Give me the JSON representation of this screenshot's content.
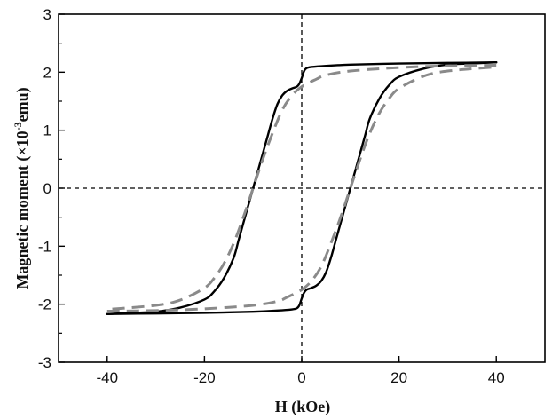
{
  "chart_data": {
    "type": "line",
    "title": "",
    "xlabel": "H (kOe)",
    "ylabel_main": "Magnetic moment (×10",
    "ylabel_sup": "-3",
    "ylabel_unit": "emu)",
    "xlim": [
      -50,
      50
    ],
    "ylim": [
      -3,
      3
    ],
    "x_ticks": [
      -40,
      -20,
      0,
      20,
      40
    ],
    "x_tick_labels": [
      "-40",
      "-20",
      "0",
      "20",
      "40"
    ],
    "y_ticks": [
      -3,
      -2,
      -1,
      0,
      1,
      2,
      3
    ],
    "y_tick_labels": [
      "-3",
      "-2",
      "-1",
      "0",
      "1",
      "2",
      "3"
    ],
    "grid": false,
    "reference_lines": {
      "x": 0,
      "y": 0,
      "style": "dashed"
    },
    "series": [
      {
        "style": "solid",
        "color": "#000000",
        "branches": [
          {
            "x": [
              40,
              30,
              20,
              10,
              5,
              2,
              1,
              0.5,
              0,
              -0.5,
              -1,
              -2,
              -3,
              -4,
              -5,
              -6,
              -7,
              -8,
              -9,
              -10,
              -11,
              -12,
              -13,
              -14,
              -16,
              -18,
              -20,
              -25,
              -30,
              -35,
              -40
            ],
            "y": [
              2.17,
              2.16,
              2.15,
              2.13,
              2.11,
              2.09,
              2.07,
              2.02,
              1.9,
              1.8,
              1.75,
              1.72,
              1.68,
              1.6,
              1.45,
              1.2,
              0.9,
              0.6,
              0.3,
              0.0,
              -0.3,
              -0.6,
              -0.9,
              -1.2,
              -1.55,
              -1.78,
              -1.92,
              -2.06,
              -2.13,
              -2.15,
              -2.17
            ]
          },
          {
            "x": [
              -40,
              -30,
              -20,
              -10,
              -5,
              -2,
              -1,
              -0.5,
              0,
              0.5,
              1,
              2,
              3,
              4,
              5,
              6,
              7,
              8,
              9,
              10,
              11,
              12,
              13,
              14,
              16,
              18,
              20,
              25,
              30,
              35,
              40
            ],
            "y": [
              -2.17,
              -2.16,
              -2.15,
              -2.13,
              -2.11,
              -2.09,
              -2.07,
              -2.02,
              -1.9,
              -1.8,
              -1.75,
              -1.72,
              -1.68,
              -1.6,
              -1.45,
              -1.2,
              -0.9,
              -0.6,
              -0.3,
              0.0,
              0.3,
              0.6,
              0.9,
              1.2,
              1.55,
              1.78,
              1.92,
              2.06,
              2.13,
              2.15,
              2.17
            ]
          }
        ]
      },
      {
        "style": "dashed",
        "color": "#8a8a8a",
        "branches": [
          {
            "x": [
              40,
              30,
              20,
              10,
              5,
              3,
              0,
              -2,
              -4,
              -6,
              -8,
              -10,
              -12,
              -14,
              -16,
              -18,
              -20,
              -25,
              -30,
              -40
            ],
            "y": [
              2.12,
              2.11,
              2.08,
              2.02,
              1.95,
              1.88,
              1.75,
              1.6,
              1.35,
              0.95,
              0.5,
              0.0,
              -0.5,
              -0.95,
              -1.3,
              -1.55,
              -1.72,
              -1.93,
              -2.02,
              -2.09
            ]
          },
          {
            "x": [
              -40,
              -30,
              -20,
              -10,
              -5,
              -3,
              0,
              2,
              4,
              6,
              8,
              10,
              12,
              14,
              16,
              18,
              20,
              25,
              30,
              40
            ],
            "y": [
              -2.12,
              -2.11,
              -2.08,
              -2.02,
              -1.95,
              -1.88,
              -1.75,
              -1.6,
              -1.35,
              -0.95,
              -0.5,
              0.0,
              0.5,
              0.95,
              1.3,
              1.55,
              1.72,
              1.93,
              2.02,
              2.09
            ]
          }
        ]
      }
    ]
  }
}
